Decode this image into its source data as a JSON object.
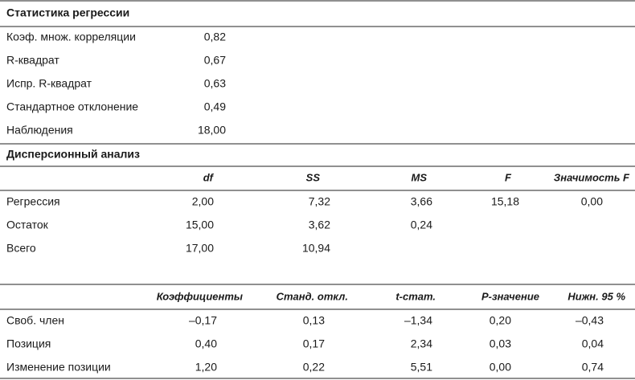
{
  "regression_stats": {
    "title": "Статистика регрессии",
    "rows": [
      [
        "Коэф. множ. корреляции",
        "0,82"
      ],
      [
        "R-квадрат",
        "0,67"
      ],
      [
        "Испр. R-квадрат",
        "0,63"
      ],
      [
        "Стандартное отклонение",
        "0,49"
      ],
      [
        "Наблюдения",
        "18,00"
      ]
    ]
  },
  "anova": {
    "title": "Дисперсионный анализ",
    "header": [
      "df",
      "SS",
      "MS",
      "F",
      "Значимость F"
    ],
    "rows": [
      [
        "Регрессия",
        "2,00",
        "7,32",
        "3,66",
        "15,18",
        "0,00"
      ],
      [
        "Остаток",
        "15,00",
        "3,62",
        "0,24"
      ],
      [
        "Всего",
        "17,00",
        "10,94"
      ]
    ]
  },
  "coefficients": {
    "header": [
      "Коэффициенты",
      "Станд. откл.",
      "t-стат.",
      "P-значение",
      "Нижн. 95 %"
    ],
    "rows": [
      [
        "Своб. член",
        "–0,17",
        "0,13",
        "–1,34",
        "0,20",
        "–0,43"
      ],
      [
        "Позиция",
        "0,40",
        "0,17",
        "2,34",
        "0,03",
        "0,04"
      ],
      [
        "Изменение позиции",
        "1,20",
        "0,22",
        "5,51",
        "0,00",
        "0,74"
      ]
    ]
  }
}
